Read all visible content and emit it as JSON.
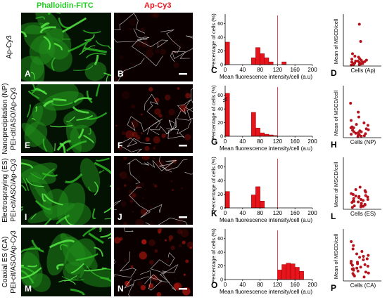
{
  "headers": {
    "green": "Phalloidin-FITC",
    "red": "Ap-Cy3",
    "green_color": "#22cc22",
    "red_color": "#e8141c"
  },
  "rows": [
    {
      "label_line1": "Ap-Cy3",
      "label_line2": "",
      "letters": [
        "A",
        "B",
        "C",
        "D"
      ],
      "cells_label": "Cells (Ap)"
    },
    {
      "label_line1": "Nanoprecipitation (NP)",
      "label_line2": "PEI-cit/ASO/Ap-Cy3",
      "letters": [
        "E",
        "F",
        "G",
        "H"
      ],
      "cells_label": "Cells (NP)"
    },
    {
      "label_line1": "Electrospraying (ES)",
      "label_line2": "PEI-cit/ASO/Ap-Cy3",
      "letters": [
        "I",
        "J",
        "K",
        "L"
      ],
      "cells_label": "Cells (ES)"
    },
    {
      "label_line1": "Coaxial ES (CA)",
      "label_line2": "PEI-cit/ASO/Ap-Cy3",
      "letters": [
        "M",
        "N",
        "O",
        "P"
      ],
      "cells_label": "Cells (CA)"
    }
  ],
  "hist_axis": {
    "ylabel": "Percentage of cells (%)",
    "xlabel": "Mean fluorescence intensity/cell (a.u)",
    "xticks": [
      "0",
      "40",
      "80",
      "120",
      "160",
      "200"
    ],
    "yticks": [
      "0",
      "20",
      "40",
      "60"
    ],
    "cutoff": 120
  },
  "dot_axis": {
    "ylabel": "Mean of MSCD/cell"
  },
  "chart_data": [
    {
      "type": "bar",
      "panel": "C",
      "x": [
        0,
        10,
        20,
        30,
        40,
        50,
        60,
        70,
        80,
        90,
        100,
        110,
        120,
        130,
        140,
        150,
        160,
        170
      ],
      "values": [
        33,
        0,
        0,
        0,
        0,
        0,
        10,
        25,
        16,
        10,
        4,
        0,
        0,
        4,
        0,
        0,
        0,
        0
      ],
      "ylim": [
        0,
        70
      ],
      "xlim": [
        0,
        200
      ]
    },
    {
      "type": "bar",
      "panel": "G",
      "x": [
        0,
        10,
        20,
        30,
        40,
        50,
        60,
        70,
        80,
        90,
        100,
        110
      ],
      "values": [
        63,
        0,
        0,
        0,
        0,
        0,
        35,
        12,
        5,
        3,
        2,
        1
      ],
      "ylim": [
        0,
        70
      ],
      "xlim": [
        0,
        200
      ],
      "broken_axis": true
    },
    {
      "type": "bar",
      "panel": "K",
      "x": [
        0,
        10,
        20,
        30,
        40,
        50,
        60,
        70,
        80,
        90
      ],
      "values": [
        24,
        0,
        0,
        0,
        0,
        0,
        19,
        31,
        10,
        0
      ],
      "ylim": [
        0,
        70
      ],
      "xlim": [
        0,
        200
      ]
    },
    {
      "type": "bar",
      "panel": "O",
      "x": [
        120,
        130,
        140,
        150,
        160,
        170
      ],
      "values": [
        14,
        22,
        24,
        23,
        18,
        12
      ],
      "ylim": [
        0,
        70
      ],
      "xlim": [
        0,
        200
      ]
    },
    {
      "type": "scatter",
      "panel": "D",
      "values": [
        85,
        50,
        25,
        20,
        18,
        15,
        14,
        12,
        12,
        10,
        10,
        9,
        8,
        8,
        7,
        6,
        5,
        5,
        4,
        3,
        3,
        2
      ]
    },
    {
      "type": "scatter",
      "panel": "H",
      "values": [
        70,
        52,
        42,
        35,
        30,
        27,
        25,
        22,
        20,
        20,
        18,
        16,
        15,
        14,
        12,
        12,
        10,
        9,
        8,
        7,
        6,
        5,
        4,
        3,
        2
      ]
    },
    {
      "type": "scatter",
      "panel": "L",
      "values": [
        45,
        40,
        38,
        35,
        32,
        30,
        28,
        27,
        26,
        25,
        24,
        22,
        20,
        20,
        18,
        17,
        16,
        15,
        14,
        12,
        10,
        9,
        8,
        7,
        6,
        5,
        4
      ]
    },
    {
      "type": "scatter",
      "panel": "P",
      "values": [
        80,
        72,
        65,
        60,
        55,
        52,
        50,
        48,
        45,
        43,
        40,
        38,
        36,
        35,
        33,
        32,
        30,
        28,
        26,
        25,
        24,
        22,
        20,
        18,
        16,
        15,
        12,
        10,
        8
      ]
    }
  ]
}
